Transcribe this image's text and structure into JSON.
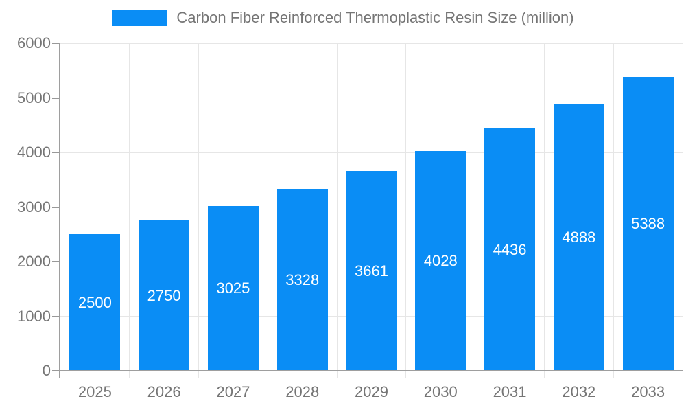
{
  "legend": {
    "label": "Carbon Fiber Reinforced Thermoplastic Resin Size (million)"
  },
  "chart_data": {
    "type": "bar",
    "title": "Carbon Fiber Reinforced Thermoplastic Resin Size (million)",
    "legend_position": "top",
    "categories": [
      "2025",
      "2026",
      "2027",
      "2028",
      "2029",
      "2030",
      "2031",
      "2032",
      "2033"
    ],
    "series": [
      {
        "name": "Carbon Fiber Reinforced Thermoplastic Resin Size (million)",
        "values": [
          2500,
          2750,
          3025,
          3328,
          3661,
          4028,
          4436,
          4888,
          5388
        ]
      }
    ],
    "xlabel": "",
    "ylabel": "",
    "ylim": [
      0,
      6000
    ],
    "y_ticks": [
      0,
      1000,
      2000,
      3000,
      4000,
      5000,
      6000
    ],
    "grid": true,
    "bar_label_position": "inside-center",
    "colors": {
      "bar": "#0a8df5",
      "bar_label": "#ffffff",
      "axis_text": "#757575",
      "grid": "#e6e6e6",
      "axis_line": "#9e9e9e",
      "y_tick": "#999999",
      "x_tick": "#dcdcdc",
      "background": "#ffffff"
    }
  }
}
